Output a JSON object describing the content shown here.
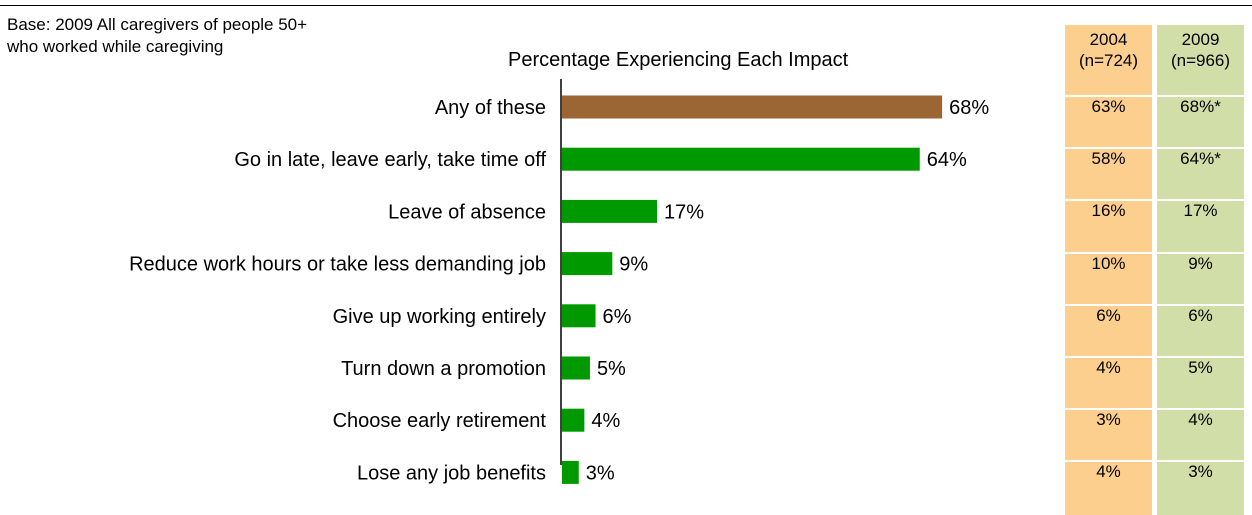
{
  "base_note": "Base:  2009 All caregivers of people 50+\nwho worked while caregiving",
  "chart_data": {
    "type": "bar",
    "orientation": "horizontal",
    "title": "Percentage Experiencing Each Impact",
    "categories": [
      "Any of these",
      "Go in late, leave early, take time off",
      "Leave of absence",
      "Reduce work hours or take less demanding job",
      "Give up working entirely",
      "Turn down a promotion",
      "Choose early retirement",
      "Lose any job benefits"
    ],
    "values": [
      68,
      64,
      17,
      9,
      6,
      5,
      4,
      3
    ],
    "value_labels": [
      "68%",
      "64%",
      "17%",
      "9%",
      "6%",
      "5%",
      "4%",
      "3%"
    ],
    "colors": {
      "highlight": "#9b6633",
      "bar": "#009900"
    },
    "xlim": [
      0,
      100
    ],
    "grid": false
  },
  "comparison_table": {
    "columns": [
      {
        "year": "2004",
        "n": "(n=724)",
        "color": "#fdcf8f",
        "values": [
          "63%",
          "58%",
          "16%",
          "10%",
          "6%",
          "4%",
          "3%",
          "4%"
        ]
      },
      {
        "year": "2009",
        "n": "(n=966)",
        "color": "#d2dea8",
        "values": [
          "68%*",
          "64%*",
          "17%",
          "9%",
          "6%",
          "5%",
          "4%",
          "3%"
        ]
      }
    ]
  }
}
